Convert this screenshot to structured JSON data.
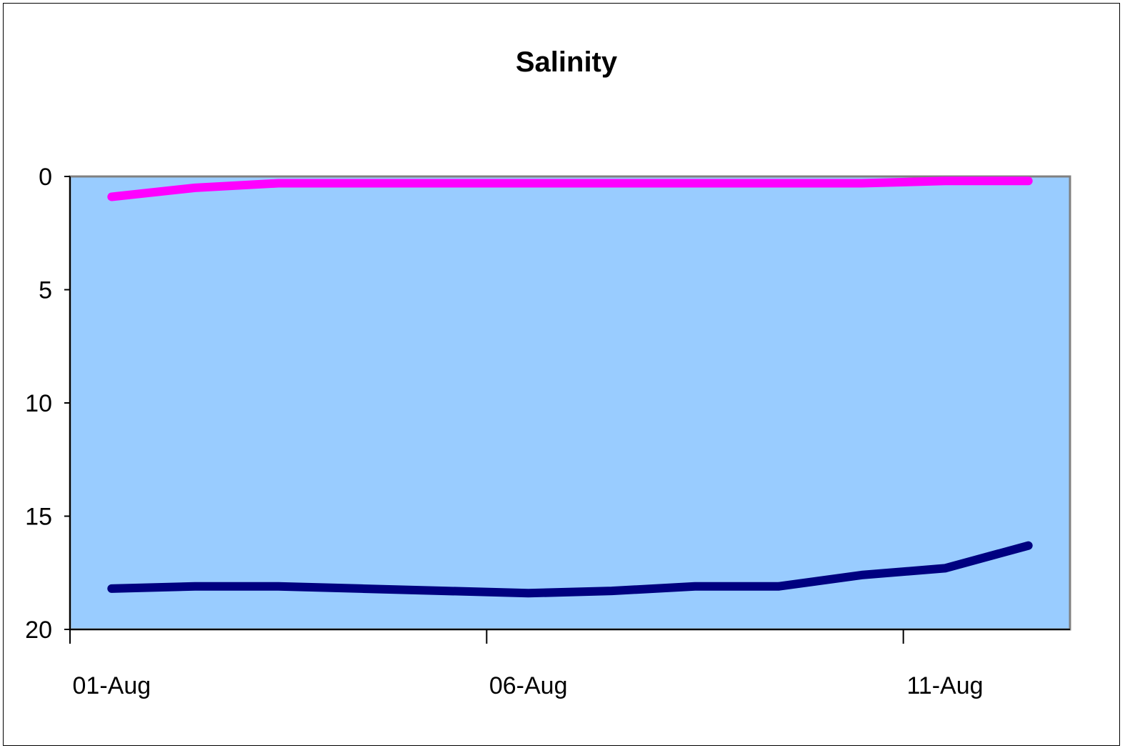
{
  "chart_data": {
    "type": "line",
    "title": "Salinity",
    "xlabel": "",
    "ylabel": "",
    "x": [
      "01-Aug",
      "02-Aug",
      "03-Aug",
      "04-Aug",
      "05-Aug",
      "06-Aug",
      "07-Aug",
      "08-Aug",
      "09-Aug",
      "10-Aug",
      "11-Aug",
      "12-Aug"
    ],
    "x_tick_labels": [
      "01-Aug",
      "06-Aug",
      "11-Aug"
    ],
    "ylim": [
      0,
      20
    ],
    "y_inverted": true,
    "y_ticks": [
      0,
      5,
      10,
      15,
      20
    ],
    "grid": false,
    "plot_background": "#99ccff",
    "series": [
      {
        "color": "#ff00ff",
        "values": [
          0.9,
          0.5,
          0.3,
          0.3,
          0.3,
          0.3,
          0.3,
          0.3,
          0.3,
          0.3,
          0.2,
          0.2
        ]
      },
      {
        "color": "#000080",
        "values": [
          18.2,
          18.1,
          18.1,
          18.2,
          18.3,
          18.4,
          18.3,
          18.1,
          18.1,
          17.6,
          17.3,
          16.3
        ]
      }
    ]
  }
}
